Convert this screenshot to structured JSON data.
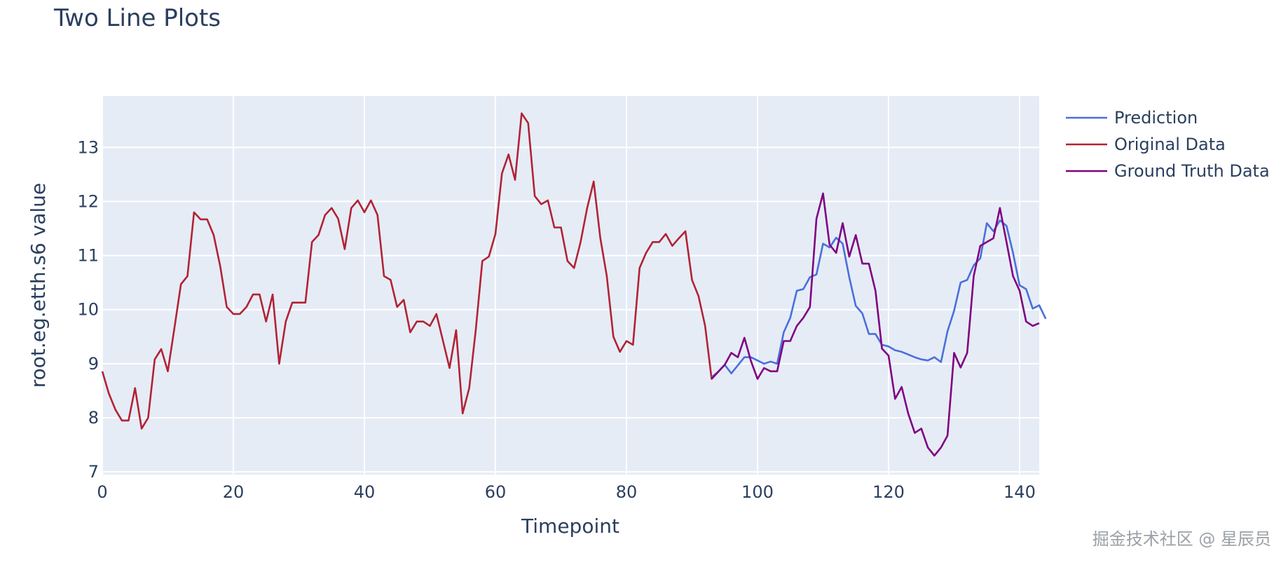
{
  "chart_data": {
    "type": "line",
    "title": "Two Line Plots",
    "xlabel": "Timepoint",
    "ylabel": "root.eg.etth.s6 value",
    "xlim": [
      0,
      143
    ],
    "ylim": [
      6.95,
      13.95
    ],
    "x_ticks": [
      0,
      20,
      40,
      60,
      80,
      100,
      120,
      140
    ],
    "y_ticks": [
      7,
      8,
      9,
      10,
      11,
      12,
      13
    ],
    "grid": true,
    "legend_position": "top-right",
    "series": [
      {
        "name": "Prediction",
        "color": "#4a6fdc",
        "x_start": 93,
        "values": [
          8.75,
          8.85,
          8.98,
          8.82,
          8.97,
          9.12,
          9.12,
          9.06,
          9.0,
          9.04,
          9.0,
          9.58,
          9.85,
          10.35,
          10.38,
          10.6,
          10.65,
          11.22,
          11.15,
          11.33,
          11.22,
          10.6,
          10.07,
          9.93,
          9.55,
          9.55,
          9.35,
          9.32,
          9.25,
          9.22,
          9.17,
          9.12,
          9.08,
          9.06,
          9.12,
          9.03,
          9.6,
          9.98,
          10.5,
          10.55,
          10.82,
          10.95,
          11.6,
          11.45,
          11.65,
          11.55,
          11.05,
          10.45,
          10.38,
          10.02,
          10.08,
          9.83
        ]
      },
      {
        "name": "Original Data",
        "color": "#b22234",
        "x_start": 0,
        "values": [
          8.86,
          8.45,
          8.15,
          7.95,
          7.95,
          8.55,
          7.8,
          8.0,
          9.08,
          9.27,
          8.86,
          9.65,
          10.47,
          10.62,
          11.8,
          11.67,
          11.67,
          11.38,
          10.8,
          10.05,
          9.92,
          9.92,
          10.05,
          10.28,
          10.28,
          9.78,
          10.28,
          9.0,
          9.78,
          10.13,
          10.13,
          10.13,
          11.25,
          11.38,
          11.75,
          11.88,
          11.68,
          11.12,
          11.88,
          12.02,
          11.8,
          12.02,
          11.75,
          10.62,
          10.55,
          10.05,
          10.18,
          9.58,
          9.78,
          9.78,
          9.7,
          9.92,
          9.42,
          8.92,
          9.62,
          8.08,
          8.55,
          9.62,
          10.9,
          10.98,
          11.4,
          12.52,
          12.87,
          12.4,
          13.63,
          13.45,
          12.1,
          11.95,
          12.02,
          11.52,
          11.52,
          10.9,
          10.77,
          11.25,
          11.88,
          12.37,
          11.33,
          10.62,
          9.5,
          9.22,
          9.42,
          9.35,
          10.77,
          11.05,
          11.25,
          11.25,
          11.4,
          11.18,
          11.32,
          11.45,
          10.55,
          10.25,
          9.7,
          8.72,
          8.85,
          8.98
        ]
      },
      {
        "name": "Ground Truth Data",
        "color": "#800080",
        "x_start": 93,
        "values": [
          8.72,
          8.85,
          8.98,
          9.2,
          9.12,
          9.48,
          9.05,
          8.72,
          8.92,
          8.86,
          8.86,
          9.42,
          9.42,
          9.7,
          9.85,
          10.05,
          11.68,
          12.15,
          11.2,
          11.05,
          11.6,
          10.98,
          11.38,
          10.85,
          10.85,
          10.35,
          9.28,
          9.15,
          8.35,
          8.57,
          8.08,
          7.72,
          7.8,
          7.45,
          7.3,
          7.45,
          7.67,
          9.2,
          8.93,
          9.2,
          10.62,
          11.18,
          11.25,
          11.32,
          11.88,
          11.25,
          10.62,
          10.35,
          9.78,
          9.7,
          9.75
        ]
      }
    ]
  },
  "watermark": "掘金技术社区 @ 星辰员"
}
